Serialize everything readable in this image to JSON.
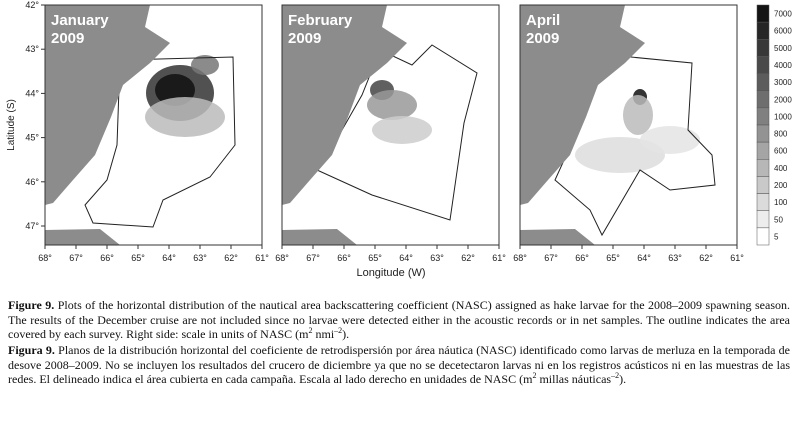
{
  "figure": {
    "panels": [
      {
        "month": "January",
        "year": "2009"
      },
      {
        "month": "February",
        "year": "2009"
      },
      {
        "month": "April",
        "year": "2009"
      }
    ],
    "y_axis": {
      "label": "Latitude (S)",
      "ticks": [
        "42°",
        "43°",
        "44°",
        "45°",
        "46°",
        "47°"
      ]
    },
    "x_axis": {
      "label": "Longitude (W)",
      "ticks": [
        "68°",
        "67°",
        "66°",
        "65°",
        "64°",
        "63°",
        "62°",
        "61°"
      ]
    },
    "colorbar": {
      "labels": [
        "7000",
        "6000",
        "5000",
        "4000",
        "3000",
        "2000",
        "1000",
        "800",
        "600",
        "400",
        "200",
        "100",
        "50",
        "5"
      ]
    }
  },
  "caption": {
    "english": {
      "label": "Figure 9.",
      "text": " Plots of the horizontal distribution of the nautical area backscattering coefficient (NASC) assigned as hake larvae for the 2008–2009 spawning season. The results of the December cruise are not included since no larvae were detected either in the acoustic records or in net samples. The outline indicates the area covered by each survey. Right side: scale in units of NASC (m",
      "sup1": "2",
      "mid": " nmi",
      "sup2": "–2",
      "end": ")."
    },
    "spanish": {
      "label": "Figura 9.",
      "text": " Planos de la distribución horizontal del coeficiente de retrodispersión por área náutica (NASC) identificado como larvas de merluza en la temporada de desove 2008–2009. No se incluyen los resultados del crucero de diciembre ya que no se decetectaron larvas ni en los registros acústicos ni en las muestras de las redes. El delineado indica el área cubierta en cada campaña. Escala al lado derecho en unidades de NASC (m",
      "sup1": "2",
      "mid": " millas náuticas",
      "sup2": "–2",
      "end": ")."
    }
  }
}
